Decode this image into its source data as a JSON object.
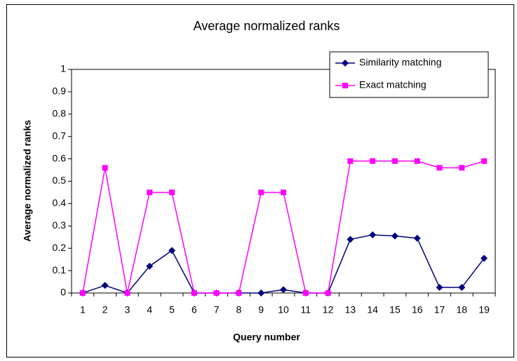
{
  "chart_data": {
    "type": "line",
    "title": "Average normalized ranks",
    "x_label": "Query number",
    "y_label": "Average normalized ranks",
    "categories": [
      "1",
      "2",
      "3",
      "4",
      "5",
      "6",
      "7",
      "8",
      "9",
      "10",
      "11",
      "12",
      "13",
      "14",
      "15",
      "16",
      "17",
      "18",
      "19"
    ],
    "series": [
      {
        "name": "Similarity matching",
        "color": "#000080",
        "marker": "diamond",
        "values": [
          0,
          0.034,
          0,
          0.12,
          0.19,
          0,
          0,
          0,
          0,
          0.015,
          0,
          0,
          0.24,
          0.26,
          0.255,
          0.245,
          0.025,
          0.025,
          0.155
        ]
      },
      {
        "name": "Exact matching",
        "color": "#ff00ff",
        "marker": "square",
        "values": [
          0,
          0.56,
          0,
          0.45,
          0.45,
          0,
          0,
          0,
          0.45,
          0.45,
          0,
          0,
          0.59,
          0.59,
          0.59,
          0.59,
          0.56,
          0.56,
          0.59
        ]
      }
    ],
    "ylim": [
      0,
      1
    ],
    "yticks": [
      0,
      0.1,
      0.2,
      0.3,
      0.4,
      0.5,
      0.6,
      0.7,
      0.8,
      0.9,
      1
    ],
    "grid": false,
    "legend": "top-right"
  }
}
